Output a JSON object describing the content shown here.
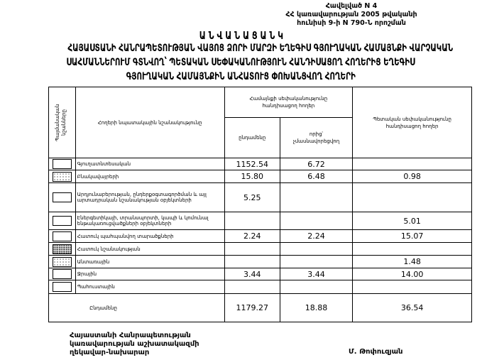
{
  "annex": {
    "line1": "Հավելված N 4",
    "line2": "ՀՀ կառավարության 2005 թվականի",
    "line3": "հունիսի 9-ի N 790-Ն որոշման"
  },
  "title": {
    "heading": "Ա Ն Վ Ա Ն Ա Ց Ա Ն Կ",
    "line1": "ՀԱՅԱՍՏԱՆԻ ՀԱՆՐԱՊԵՏՈՒԹՅԱՆ ՎԱՅՈՑ ՁՈՐԻ ՄԱՐԶԻ ԵՂԵԳԻՍ ԳՅՈՒՂԱԿԱՆ ՀԱՄԱՅՆՔԻ ՎԱՐՉԱԿԱՆ",
    "line2": "ՍԱՀՄԱՆՆԵՐՈՒՄ ԳՏՆՎՈՂ՝ ՊԵՏԱԿԱՆ ՍԵՓԱԿԱՆՈՒԹՅՈՒՆ ՀԱՆԴԻՍԱՑՈՂ ՀՈՂԵՐԻՑ ԵՂԵԳԻՍ",
    "line3": "ԳՅՈՒՂԱԿԱՆ ՀԱՄԱՅՆՔԻՆ ԱՆՀԱՏՈՒՑ ՓՈԽԱՆՑՎՈՂ ՀՈՂԵՐԻ"
  },
  "table": {
    "headers": {
      "symbols": "Պայմանական նշանները",
      "purpose": "Հողերի նպատակային նշանակությունը",
      "community": "Համայնքի սեփականությունը հանդիսացող հողեր",
      "total": "ընդամենը",
      "non_privatized": "որից՝ չմասնավորեցվող",
      "state": "Պետական սեփականությունը հանդիսացող հողեր"
    },
    "rows": [
      {
        "pattern": "plain",
        "label": "Գյուղատնտեսական",
        "total": "1152.54",
        "non_privatized": "6.72",
        "state": ""
      },
      {
        "pattern": "dots",
        "label": "Բնակավայրերի",
        "total": "15.80",
        "non_privatized": "6.48",
        "state": "0.98"
      },
      {
        "pattern": "plain",
        "label": "Արդյունաբերության, ընդերքօգտագործման և այլ արտադրական նշանակության օբյեկտների",
        "total": "5.25",
        "non_privatized": "",
        "state": ""
      },
      {
        "pattern": "plain",
        "label": "Էներգետիկայի, տրանսպորտի, կապի և կոմունալ ենթակառուցվածքների օբյեկտների",
        "total": "",
        "non_privatized": "",
        "state": "5.01"
      },
      {
        "pattern": "plain",
        "label": "Հատուկ պահպանվող տարածքների",
        "total": "2.24",
        "non_privatized": "2.24",
        "state": "15.07"
      },
      {
        "pattern": "dense",
        "label": "Հատուկ նշանակության",
        "total": "",
        "non_privatized": "",
        "state": ""
      },
      {
        "pattern": "dots",
        "label": "Անտառային",
        "total": "",
        "non_privatized": "",
        "state": "1.48"
      },
      {
        "pattern": "plain",
        "label": "Ջրային",
        "total": "3.44",
        "non_privatized": "3.44",
        "state": "14.00"
      },
      {
        "pattern": "plain",
        "label": "Պահուստային",
        "total": "",
        "non_privatized": "",
        "state": ""
      }
    ],
    "totals": {
      "label": "Ընդամենը",
      "total": "1179.27",
      "non_privatized": "18.88",
      "state": "36.54"
    }
  },
  "signature": {
    "line1": "Հայաստանի Հանրապետության",
    "line2": "կառավարության աշխատակազմի",
    "line3": "ղեկավար-նախարար",
    "name": "Մ. Թոփուզյան"
  }
}
